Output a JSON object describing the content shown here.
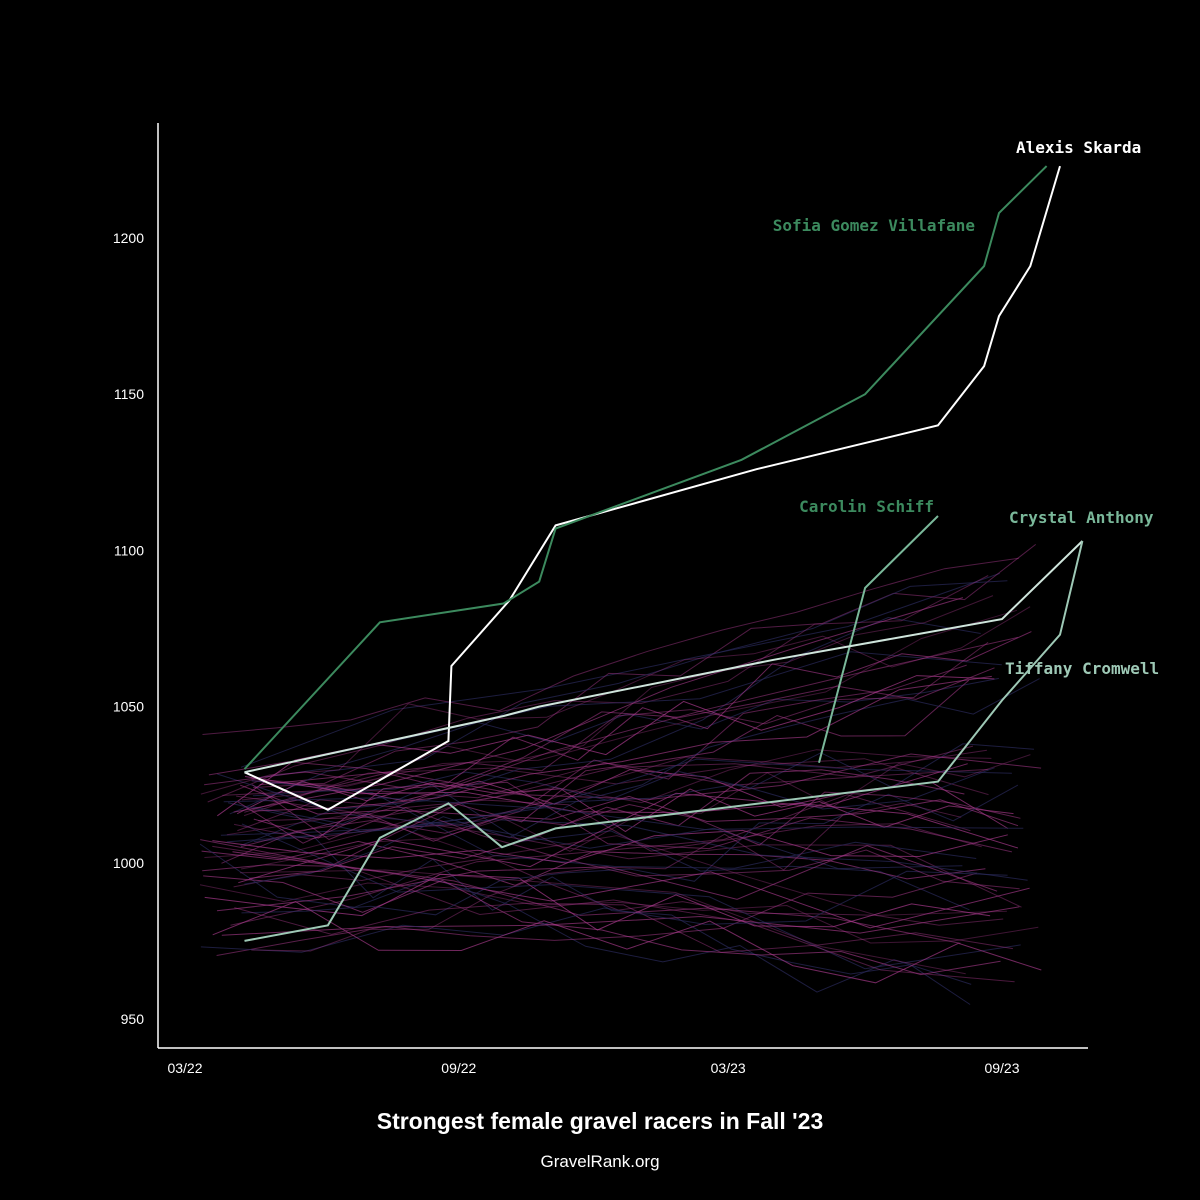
{
  "chart_data": {
    "type": "line",
    "title": "Strongest female gravel racers in Fall '23",
    "subtitle": "GravelRank.org",
    "xlabel": "",
    "ylabel": "",
    "x_ticks": [
      "03/22",
      "09/22",
      "03/23",
      "09/23"
    ],
    "y_ticks": [
      "950",
      "1000",
      "1050",
      "1100",
      "1150",
      "1200"
    ],
    "ylim": [
      937,
      1245
    ],
    "xlim": [
      "2022-03-01",
      "2023-11-15"
    ],
    "grid": false,
    "legend": "none (direct labels)",
    "background_color": "#000000",
    "background_series_color": "#a83a8c",
    "highlighted_series": [
      {
        "name": "Alexis Skarda",
        "color": "#ffffff",
        "points": [
          [
            "2022-04-10",
            1029
          ],
          [
            "2022-06-05",
            1017
          ],
          [
            "2022-08-25",
            1039
          ],
          [
            "2022-08-27",
            1063
          ],
          [
            "2022-10-05",
            1084
          ],
          [
            "2022-11-05",
            1108
          ],
          [
            "2023-03-20",
            1126
          ],
          [
            "2023-07-20",
            1140
          ],
          [
            "2023-08-20",
            1159
          ],
          [
            "2023-08-30",
            1175
          ],
          [
            "2023-09-20",
            1191
          ],
          [
            "2023-10-10",
            1223
          ]
        ]
      },
      {
        "name": "Sofia Gomez Villafane",
        "color": "#3c8a5e",
        "points": [
          [
            "2022-04-10",
            1030
          ],
          [
            "2022-07-10",
            1077
          ],
          [
            "2022-10-01",
            1083
          ],
          [
            "2022-10-25",
            1090
          ],
          [
            "2022-11-05",
            1107
          ],
          [
            "2023-03-10",
            1129
          ],
          [
            "2023-06-01",
            1150
          ],
          [
            "2023-08-20",
            1191
          ],
          [
            "2023-08-30",
            1208
          ],
          [
            "2023-10-01",
            1223
          ]
        ]
      },
      {
        "name": "Carolin Schiff",
        "color": "#7ab89a",
        "points": [
          [
            "2023-05-01",
            1032
          ],
          [
            "2023-06-01",
            1088
          ],
          [
            "2023-07-20",
            1111
          ]
        ]
      },
      {
        "name": "Crystal Anthony",
        "color": "#cfe5dc",
        "points": [
          [
            "2022-04-10",
            1029
          ],
          [
            "2022-10-01",
            1047
          ],
          [
            "2022-10-25",
            1050
          ],
          [
            "2023-04-01",
            1065
          ],
          [
            "2023-09-01",
            1078
          ],
          [
            "2023-10-25",
            1103
          ]
        ]
      },
      {
        "name": "Tiffany Cromwell",
        "color": "#9ec9b6",
        "points": [
          [
            "2022-04-10",
            975
          ],
          [
            "2022-06-05",
            980
          ],
          [
            "2022-07-10",
            1008
          ],
          [
            "2022-08-25",
            1019
          ],
          [
            "2022-09-30",
            1005
          ],
          [
            "2022-11-05",
            1011
          ],
          [
            "2023-07-20",
            1026
          ],
          [
            "2023-09-01",
            1052
          ],
          [
            "2023-10-10",
            1073
          ],
          [
            "2023-10-25",
            1103
          ]
        ]
      }
    ]
  }
}
